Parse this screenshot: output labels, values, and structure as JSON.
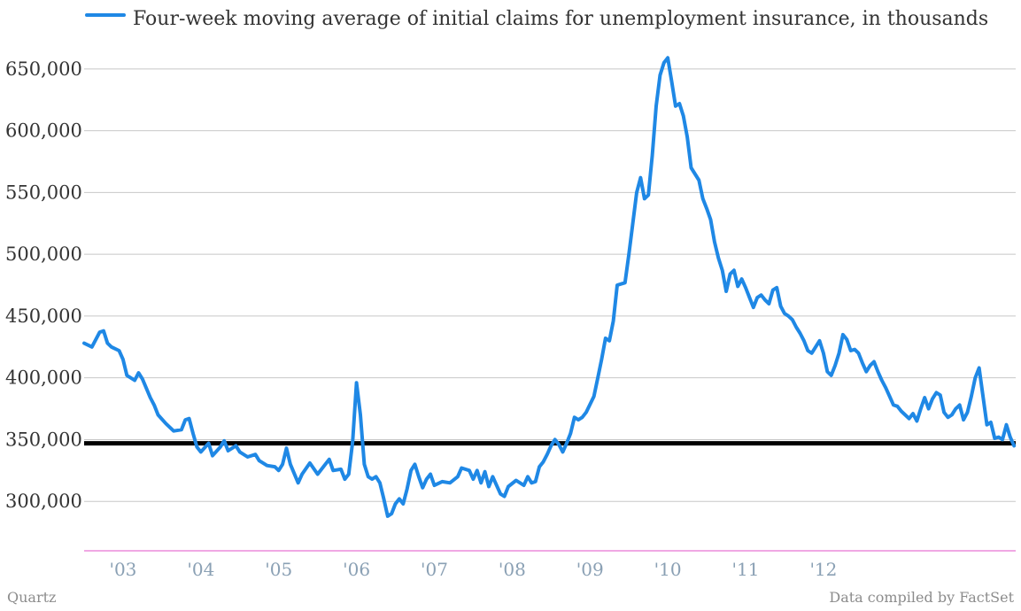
{
  "chart_data": {
    "type": "line",
    "title": "",
    "xlabel": "",
    "ylabel": "",
    "series": [
      {
        "name": "Four-week moving average of initial claims for unemployment insurance, in thousands",
        "color": "#1f88e5",
        "points": [
          [
            2002.75,
            428
          ],
          [
            2002.85,
            425
          ],
          [
            2002.95,
            437
          ],
          [
            2003.0,
            438
          ],
          [
            2003.05,
            428
          ],
          [
            2003.1,
            425
          ],
          [
            2003.2,
            422
          ],
          [
            2003.25,
            415
          ],
          [
            2003.3,
            402
          ],
          [
            2003.4,
            398
          ],
          [
            2003.45,
            404
          ],
          [
            2003.5,
            399
          ],
          [
            2003.6,
            384
          ],
          [
            2003.65,
            378
          ],
          [
            2003.7,
            370
          ],
          [
            2003.8,
            363
          ],
          [
            2003.9,
            357
          ],
          [
            2004.0,
            358
          ],
          [
            2004.05,
            366
          ],
          [
            2004.1,
            367
          ],
          [
            2004.15,
            355
          ],
          [
            2004.2,
            344
          ],
          [
            2004.25,
            340
          ],
          [
            2004.35,
            347
          ],
          [
            2004.4,
            337
          ],
          [
            2004.5,
            344
          ],
          [
            2004.55,
            349
          ],
          [
            2004.6,
            341
          ],
          [
            2004.7,
            345
          ],
          [
            2004.75,
            340
          ],
          [
            2004.85,
            336
          ],
          [
            2004.95,
            338
          ],
          [
            2005.0,
            333
          ],
          [
            2005.1,
            329
          ],
          [
            2005.2,
            328
          ],
          [
            2005.25,
            325
          ],
          [
            2005.3,
            330
          ],
          [
            2005.35,
            343
          ],
          [
            2005.4,
            330
          ],
          [
            2005.5,
            315
          ],
          [
            2005.55,
            322
          ],
          [
            2005.65,
            331
          ],
          [
            2005.75,
            322
          ],
          [
            2005.85,
            330
          ],
          [
            2005.9,
            334
          ],
          [
            2005.95,
            325
          ],
          [
            2006.05,
            326
          ],
          [
            2006.1,
            318
          ],
          [
            2006.15,
            322
          ],
          [
            2006.2,
            348
          ],
          [
            2006.25,
            396
          ],
          [
            2006.3,
            370
          ],
          [
            2006.35,
            330
          ],
          [
            2006.4,
            320
          ],
          [
            2006.45,
            318
          ],
          [
            2006.5,
            320
          ],
          [
            2006.55,
            315
          ],
          [
            2006.6,
            302
          ],
          [
            2006.65,
            288
          ],
          [
            2006.7,
            290
          ],
          [
            2006.75,
            298
          ],
          [
            2006.8,
            302
          ],
          [
            2006.85,
            298
          ],
          [
            2006.9,
            310
          ],
          [
            2006.95,
            325
          ],
          [
            2007.0,
            330
          ],
          [
            2007.05,
            320
          ],
          [
            2007.1,
            311
          ],
          [
            2007.15,
            318
          ],
          [
            2007.2,
            322
          ],
          [
            2007.25,
            313
          ],
          [
            2007.35,
            316
          ],
          [
            2007.45,
            315
          ],
          [
            2007.55,
            320
          ],
          [
            2007.6,
            327
          ],
          [
            2007.7,
            325
          ],
          [
            2007.75,
            318
          ],
          [
            2007.8,
            325
          ],
          [
            2007.85,
            315
          ],
          [
            2007.9,
            324
          ],
          [
            2007.95,
            312
          ],
          [
            2008.0,
            320
          ],
          [
            2008.1,
            306
          ],
          [
            2008.15,
            304
          ],
          [
            2008.2,
            312
          ],
          [
            2008.3,
            317
          ],
          [
            2008.4,
            313
          ],
          [
            2008.45,
            320
          ],
          [
            2008.5,
            315
          ],
          [
            2008.55,
            316
          ],
          [
            2008.6,
            328
          ],
          [
            2008.65,
            332
          ],
          [
            2008.7,
            338
          ],
          [
            2008.75,
            345
          ],
          [
            2008.8,
            350
          ],
          [
            2008.85,
            346
          ],
          [
            2008.9,
            340
          ],
          [
            2008.95,
            347
          ],
          [
            2009.0,
            355
          ],
          [
            2009.05,
            368
          ],
          [
            2009.1,
            366
          ],
          [
            2009.15,
            368
          ],
          [
            2009.2,
            372
          ],
          [
            2009.3,
            385
          ],
          [
            2009.35,
            400
          ],
          [
            2009.4,
            415
          ],
          [
            2009.45,
            432
          ],
          [
            2009.5,
            430
          ],
          [
            2009.55,
            446
          ],
          [
            2009.6,
            475
          ],
          [
            2009.7,
            477
          ],
          [
            2009.75,
            500
          ],
          [
            2009.8,
            525
          ],
          [
            2009.85,
            550
          ],
          [
            2009.9,
            562
          ],
          [
            2009.95,
            545
          ],
          [
            2010.0,
            548
          ],
          [
            2010.05,
            580
          ],
          [
            2010.1,
            620
          ],
          [
            2010.15,
            645
          ],
          [
            2010.2,
            655
          ],
          [
            2010.25,
            659
          ],
          [
            2010.3,
            640
          ],
          [
            2010.35,
            620
          ],
          [
            2010.4,
            622
          ],
          [
            2010.45,
            612
          ],
          [
            2010.5,
            595
          ],
          [
            2010.55,
            570
          ],
          [
            2010.6,
            565
          ],
          [
            2010.65,
            560
          ],
          [
            2010.7,
            545
          ],
          [
            2010.75,
            537
          ],
          [
            2010.8,
            528
          ],
          [
            2010.85,
            510
          ],
          [
            2010.9,
            497
          ],
          [
            2010.95,
            487
          ],
          [
            2011.0,
            470
          ],
          [
            2011.05,
            484
          ],
          [
            2011.1,
            487
          ],
          [
            2011.15,
            474
          ],
          [
            2011.2,
            480
          ],
          [
            2011.25,
            473
          ],
          [
            2011.3,
            465
          ],
          [
            2011.35,
            457
          ],
          [
            2011.4,
            465
          ],
          [
            2011.45,
            467
          ],
          [
            2011.5,
            463
          ],
          [
            2011.55,
            460
          ],
          [
            2011.6,
            471
          ],
          [
            2011.65,
            473
          ],
          [
            2011.7,
            458
          ],
          [
            2011.75,
            452
          ],
          [
            2011.8,
            450
          ],
          [
            2011.85,
            447
          ],
          [
            2011.9,
            441
          ],
          [
            2011.95,
            436
          ],
          [
            2012.0,
            430
          ],
          [
            2012.05,
            422
          ],
          [
            2012.1,
            420
          ],
          [
            2012.15,
            425
          ],
          [
            2012.2,
            430
          ],
          [
            2012.25,
            420
          ],
          [
            2012.3,
            405
          ],
          [
            2012.35,
            402
          ],
          [
            2012.4,
            410
          ],
          [
            2012.45,
            420
          ],
          [
            2012.5,
            435
          ],
          [
            2012.55,
            431
          ],
          [
            2012.6,
            422
          ],
          [
            2012.65,
            423
          ],
          [
            2012.7,
            420
          ],
          [
            2012.75,
            412
          ],
          [
            2012.8,
            405
          ],
          [
            2012.85,
            410
          ],
          [
            2012.9,
            413
          ],
          [
            2012.95,
            405
          ],
          [
            2013.0,
            398
          ],
          [
            2013.05,
            392
          ],
          [
            2013.1,
            385
          ],
          [
            2013.15,
            378
          ],
          [
            2013.2,
            377
          ],
          [
            2013.25,
            373
          ],
          [
            2013.3,
            370
          ],
          [
            2013.35,
            367
          ],
          [
            2013.4,
            371
          ],
          [
            2013.45,
            365
          ],
          [
            2013.5,
            375
          ],
          [
            2013.55,
            384
          ],
          [
            2013.6,
            375
          ],
          [
            2013.65,
            383
          ],
          [
            2013.7,
            388
          ],
          [
            2013.75,
            386
          ],
          [
            2013.8,
            372
          ],
          [
            2013.85,
            368
          ],
          [
            2013.9,
            370
          ],
          [
            2013.95,
            375
          ],
          [
            2014.0,
            378
          ],
          [
            2014.05,
            366
          ],
          [
            2014.1,
            372
          ],
          [
            2014.15,
            385
          ],
          [
            2014.2,
            400
          ],
          [
            2014.25,
            408
          ],
          [
            2014.3,
            385
          ],
          [
            2014.35,
            362
          ],
          [
            2014.4,
            364
          ],
          [
            2014.45,
            351
          ],
          [
            2014.5,
            352
          ],
          [
            2014.55,
            350
          ],
          [
            2014.6,
            362
          ],
          [
            2014.65,
            352
          ],
          [
            2014.7,
            345
          ]
        ]
      }
    ],
    "reference_line": {
      "value": 347,
      "color": "#000000"
    },
    "x_ticks": [
      {
        "label": "'03",
        "value": 2003.25
      },
      {
        "label": "'04",
        "value": 2004.25
      },
      {
        "label": "'05",
        "value": 2005.25
      },
      {
        "label": "'06",
        "value": 2006.25
      },
      {
        "label": "'07",
        "value": 2007.25
      },
      {
        "label": "'08",
        "value": 2008.25
      },
      {
        "label": "'09",
        "value": 2009.25
      },
      {
        "label": "'10",
        "value": 2010.25
      },
      {
        "label": "'11",
        "value": 2011.25
      },
      {
        "label": "'12",
        "value": 2012.25
      }
    ],
    "y_ticks": [
      {
        "label": "300,000",
        "value": 300
      },
      {
        "label": "350,000",
        "value": 350
      },
      {
        "label": "400,000",
        "value": 400
      },
      {
        "label": "450,000",
        "value": 450
      },
      {
        "label": "500,000",
        "value": 500
      },
      {
        "label": "550,000",
        "value": 550
      },
      {
        "label": "600,000",
        "value": 600
      },
      {
        "label": "650,000",
        "value": 650
      }
    ],
    "xlim": [
      2002.75,
      2014.72
    ],
    "ylim": [
      260,
      670
    ],
    "grid": true,
    "legend_position": "top-left",
    "colors": {
      "grid": "#c8c8c8",
      "baseline": "#e052c8"
    }
  },
  "footer": {
    "source_left": "Quartz",
    "source_right": "Data compiled by FactSet"
  }
}
